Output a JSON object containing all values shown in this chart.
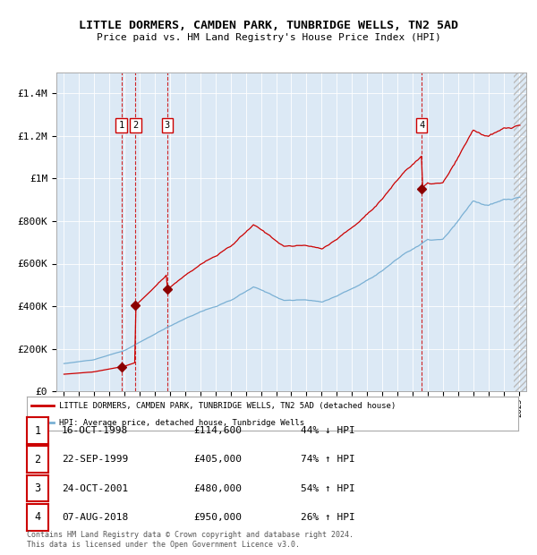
{
  "title": "LITTLE DORMERS, CAMDEN PARK, TUNBRIDGE WELLS, TN2 5AD",
  "subtitle": "Price paid vs. HM Land Registry's House Price Index (HPI)",
  "background_color": "#dce9f5",
  "red_line_color": "#cc0000",
  "blue_line_color": "#7ab0d4",
  "sale_marker_color": "#8b0000",
  "vline_color": "#cc0000",
  "grid_color": "#ffffff",
  "transactions": [
    {
      "num": 1,
      "date_label": "16-OCT-1998",
      "price": 114600,
      "pct": "44%",
      "direction": "↓",
      "year_x": 1998.79
    },
    {
      "num": 2,
      "date_label": "22-SEP-1999",
      "price": 405000,
      "pct": "74%",
      "direction": "↑",
      "year_x": 1999.72
    },
    {
      "num": 3,
      "date_label": "24-OCT-2001",
      "price": 480000,
      "pct": "54%",
      "direction": "↑",
      "year_x": 2001.81
    },
    {
      "num": 4,
      "date_label": "07-AUG-2018",
      "price": 950000,
      "pct": "26%",
      "direction": "↑",
      "year_x": 2018.6
    }
  ],
  "ylim": [
    0,
    1500000
  ],
  "xlim": [
    1994.5,
    2025.5
  ],
  "yticks": [
    0,
    200000,
    400000,
    600000,
    800000,
    1000000,
    1200000,
    1400000
  ],
  "ytick_labels": [
    "£0",
    "£200K",
    "£400K",
    "£600K",
    "£800K",
    "£1M",
    "£1.2M",
    "£1.4M"
  ],
  "footer_text": "Contains HM Land Registry data © Crown copyright and database right 2024.\nThis data is licensed under the Open Government Licence v3.0.",
  "legend_red_label": "LITTLE DORMERS, CAMDEN PARK, TUNBRIDGE WELLS, TN2 5AD (detached house)",
  "legend_blue_label": "HPI: Average price, detached house, Tunbridge Wells",
  "sale_prices": {
    "1998.79": 114600,
    "1999.72": 405000,
    "2001.81": 480000,
    "2018.60": 950000
  }
}
